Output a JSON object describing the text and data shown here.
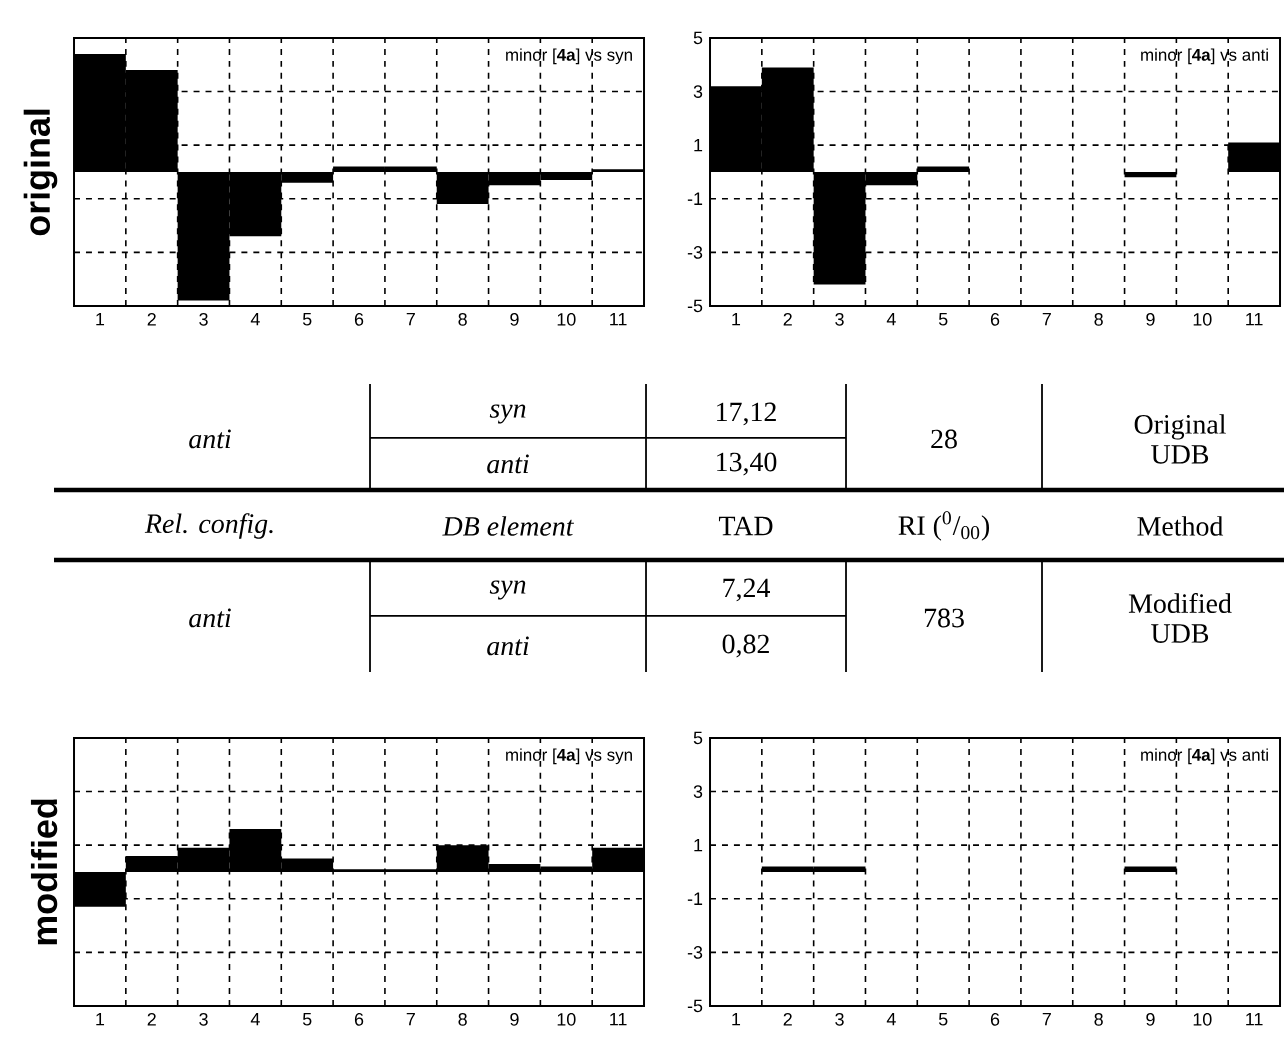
{
  "chart_data": [
    {
      "type": "bar",
      "ylabel": "original",
      "categories": [
        "1",
        "2",
        "3",
        "4",
        "5",
        "6",
        "7",
        "8",
        "9",
        "10",
        "11"
      ],
      "values": [
        4.4,
        3.8,
        -4.8,
        -2.4,
        -0.4,
        0.2,
        0.2,
        -1.2,
        -0.5,
        -0.3,
        0.1
      ],
      "color": "#000000",
      "ylim": [
        -5,
        5
      ],
      "yticks": [
        -5,
        -3,
        -1,
        1,
        3,
        5
      ],
      "grid": true,
      "tick_labels": "x",
      "annotations": [
        "minor [**4a**] vs syn"
      ]
    },
    {
      "type": "bar",
      "categories": [
        "1",
        "2",
        "3",
        "4",
        "5",
        "6",
        "7",
        "8",
        "9",
        "10",
        "11"
      ],
      "values": [
        3.2,
        3.9,
        -4.2,
        -0.5,
        0.2,
        0,
        0,
        0,
        -0.2,
        0,
        1.1
      ],
      "color": "#000000",
      "ylim": [
        -5,
        5
      ],
      "yticks": [
        -5,
        -3,
        -1,
        1,
        3,
        5
      ],
      "grid": true,
      "annotations": [
        "minor [**4a**] vs anti"
      ]
    },
    {
      "type": "other",
      "annotations": [
        "anti",
        "syn",
        "17,12",
        "28",
        "Original UDB",
        "anti",
        "13,40",
        "Rel. config.",
        "DB element",
        "TAD",
        "RI ($^{0}$/$_{00}$)",
        "Method",
        "anti",
        "syn",
        "7,24",
        "783",
        "Modified UDB",
        "anti",
        "0,82"
      ]
    },
    {
      "type": "bar",
      "ylabel": "modified",
      "categories": [
        "1",
        "2",
        "3",
        "4",
        "5",
        "6",
        "7",
        "8",
        "9",
        "10",
        "11"
      ],
      "values": [
        -1.3,
        0.6,
        0.9,
        1.6,
        0.5,
        0.1,
        0.1,
        1.0,
        0.3,
        0.2,
        0.9
      ],
      "color": "#000000",
      "ylim": [
        -5,
        5
      ],
      "yticks": [
        -5,
        -3,
        -1,
        1,
        3,
        5
      ],
      "grid": true,
      "tick_labels": "x",
      "annotations": [
        "minor [**4a**] vs syn"
      ]
    },
    {
      "type": "bar",
      "categories": [
        "1",
        "2",
        "3",
        "4",
        "5",
        "6",
        "7",
        "8",
        "9",
        "10",
        "11"
      ],
      "values": [
        0,
        0.2,
        0.2,
        0,
        0,
        0,
        0,
        0,
        0.2,
        0,
        0
      ],
      "color": "#000000",
      "ylim": [
        -5,
        5
      ],
      "yticks": [
        -5,
        -3,
        -1,
        1,
        3,
        5
      ],
      "grid": true,
      "annotations": [
        "minor [**4a**] vs anti"
      ]
    }
  ]
}
